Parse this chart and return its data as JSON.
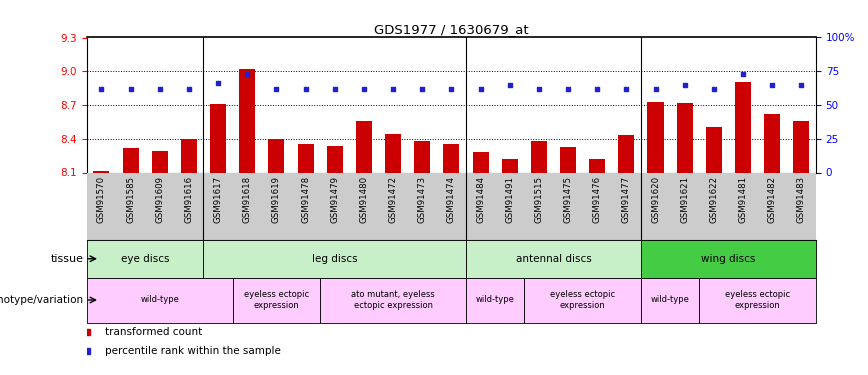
{
  "title": "GDS1977 / 1630679_at",
  "samples": [
    "GSM91570",
    "GSM91585",
    "GSM91609",
    "GSM91616",
    "GSM91617",
    "GSM91618",
    "GSM91619",
    "GSM91478",
    "GSM91479",
    "GSM91480",
    "GSM91472",
    "GSM91473",
    "GSM91474",
    "GSM91484",
    "GSM91491",
    "GSM91515",
    "GSM91475",
    "GSM91476",
    "GSM91477",
    "GSM91620",
    "GSM91621",
    "GSM91622",
    "GSM91481",
    "GSM91482",
    "GSM91483"
  ],
  "red_values": [
    8.11,
    8.32,
    8.29,
    8.4,
    8.71,
    9.02,
    8.4,
    8.35,
    8.34,
    8.56,
    8.44,
    8.38,
    8.35,
    8.28,
    8.22,
    8.38,
    8.33,
    8.22,
    8.43,
    8.73,
    8.72,
    8.5,
    8.9,
    8.62,
    8.56
  ],
  "blue_values": [
    62,
    62,
    62,
    62,
    66,
    73,
    62,
    62,
    62,
    62,
    62,
    62,
    62,
    62,
    65,
    62,
    62,
    62,
    62,
    62,
    65,
    62,
    73,
    65,
    65
  ],
  "ylim_left": [
    8.1,
    9.3
  ],
  "ylim_right": [
    0,
    100
  ],
  "yticks_left": [
    8.1,
    8.4,
    8.7,
    9.0,
    9.3
  ],
  "yticks_right": [
    0,
    25,
    50,
    75,
    100
  ],
  "ytick_labels_right": [
    "0",
    "25",
    "50",
    "75",
    "100%"
  ],
  "tissue_groups": [
    {
      "label": "eye discs",
      "start": 0,
      "end": 4,
      "color": "#c8f0c8"
    },
    {
      "label": "leg discs",
      "start": 4,
      "end": 13,
      "color": "#c8f0c8"
    },
    {
      "label": "antennal discs",
      "start": 13,
      "end": 19,
      "color": "#c8f0c8"
    },
    {
      "label": "wing discs",
      "start": 19,
      "end": 25,
      "color": "#44cc44"
    }
  ],
  "genotype_groups": [
    {
      "label": "wild-type",
      "start": 0,
      "end": 5
    },
    {
      "label": "eyeless ectopic\nexpression",
      "start": 5,
      "end": 8
    },
    {
      "label": "ato mutant, eyeless\nectopic expression",
      "start": 8,
      "end": 13
    },
    {
      "label": "wild-type",
      "start": 13,
      "end": 15
    },
    {
      "label": "eyeless ectopic\nexpression",
      "start": 15,
      "end": 19
    },
    {
      "label": "wild-type",
      "start": 19,
      "end": 21
    },
    {
      "label": "eyeless ectopic\nexpression",
      "start": 21,
      "end": 25
    }
  ],
  "bar_color": "#cc0000",
  "dot_color": "#2222cc",
  "xticklabel_bg": "#cccccc",
  "tissue_label": "tissue",
  "genotype_label": "genotype/variation",
  "group_boundaries": [
    4,
    13,
    19
  ],
  "legend_items": [
    {
      "color": "#cc0000",
      "label": "transformed count"
    },
    {
      "color": "#2222cc",
      "label": "percentile rank within the sample"
    }
  ]
}
